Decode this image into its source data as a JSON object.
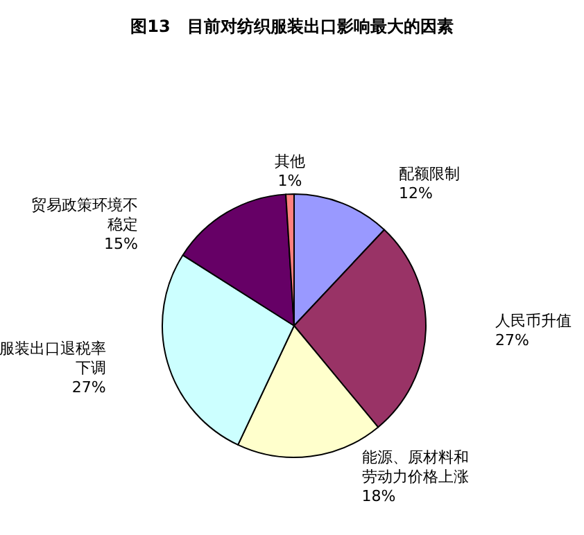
{
  "chart_data": {
    "type": "pie",
    "title": "图13　目前对纺织服装出口影响最大的因素",
    "categories": [
      "配额限制",
      "人民币升值",
      "能源、原材料和劳动力价格上涨",
      "服装出口退税率下调",
      "贸易政策环境不稳定",
      "其他"
    ],
    "values": [
      12,
      27,
      18,
      27,
      15,
      1
    ],
    "value_labels": [
      "12%",
      "27%",
      "18%",
      "27%",
      "15%",
      "1%"
    ],
    "colors": [
      "#9999ff",
      "#993366",
      "#ffffcc",
      "#ccffff",
      "#660066",
      "#ff8080"
    ],
    "legend": false
  }
}
